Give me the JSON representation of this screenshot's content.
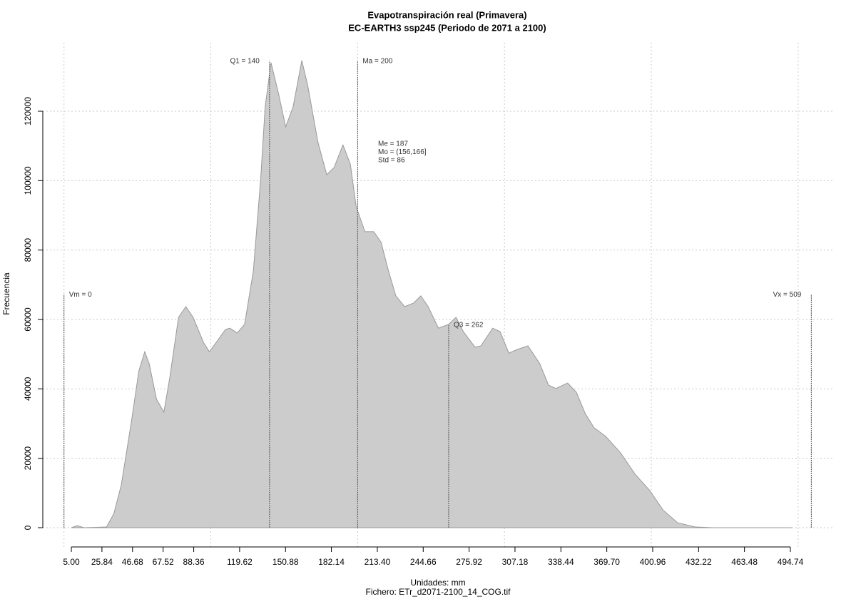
{
  "chart_data": {
    "type": "area",
    "title": "Evapotranspiración real (Primavera)",
    "subtitle": "EC-EARTH3 ssp245 (Periodo de 2071 a 2100)",
    "xlabel": "Unidades: mm",
    "caption": "Fichero: ETr_d2071-2100_14_COG.tif",
    "ylabel": "Frecuencia",
    "color": "#cccccc",
    "line_color": "#999999",
    "grid": true,
    "x": [
      5,
      9,
      13.7,
      29,
      34,
      39,
      46,
      51,
      55,
      58,
      63,
      68,
      72,
      78,
      83,
      88,
      95,
      99,
      102,
      110,
      113,
      118,
      123,
      129,
      134,
      137,
      141,
      146,
      151,
      156,
      162,
      166,
      173,
      179,
      184,
      190,
      195,
      199,
      205,
      211,
      216,
      221,
      226,
      232,
      238,
      243,
      248,
      255,
      262,
      267,
      272,
      280,
      284,
      292,
      297,
      303,
      309,
      316,
      324,
      330,
      335,
      343,
      349,
      355,
      361,
      369,
      379,
      389,
      399,
      408,
      418,
      430,
      442,
      496
    ],
    "values": [
      0,
      600,
      0,
      200,
      4100,
      12300,
      30800,
      45200,
      50700,
      47300,
      37000,
      33300,
      43100,
      60600,
      63700,
      60600,
      53400,
      50700,
      52400,
      57100,
      57500,
      56100,
      58600,
      74000,
      100700,
      121200,
      134000,
      125300,
      115500,
      121200,
      134600,
      127400,
      111000,
      101700,
      103800,
      110300,
      104800,
      92500,
      85300,
      85300,
      82200,
      74000,
      66800,
      63700,
      64700,
      66800,
      63700,
      57500,
      58600,
      60600,
      56500,
      52000,
      52400,
      57500,
      56500,
      50300,
      51400,
      52400,
      47300,
      41100,
      40100,
      41700,
      39000,
      32900,
      28800,
      26300,
      21600,
      15400,
      10700,
      5100,
      1400,
      200,
      0,
      0
    ],
    "xlim": [
      5,
      494.74
    ],
    "xticks": [
      {
        "value": 5,
        "label": "5.00"
      },
      25.84,
      46.68,
      67.52,
      88.36,
      119.62,
      150.88,
      182.14,
      {
        "value": 213.4,
        "label": "213.40"
      },
      244.66,
      275.92,
      307.18,
      338.44,
      {
        "value": 369.7,
        "label": "369.70"
      },
      400.96,
      432.22,
      463.48,
      494.74
    ],
    "xgrid": [
      0,
      100,
      200,
      300,
      400,
      500
    ],
    "ylim": [
      0,
      120000
    ],
    "yticks": [
      0,
      20000,
      40000,
      60000,
      80000,
      100000,
      120000
    ],
    "reference_lines": [
      {
        "value": 0,
        "label": "Vm = 0"
      },
      {
        "value": 140,
        "label": "Q1 = 140"
      },
      {
        "value": 200,
        "label": "Ma = 200"
      },
      {
        "value": 262,
        "label": "Q3 = 262"
      },
      {
        "value": 509,
        "label": "Vx = 509"
      }
    ],
    "annotations": [
      "Me = 187",
      "Mo = (156,166]",
      "Std = 86"
    ]
  }
}
